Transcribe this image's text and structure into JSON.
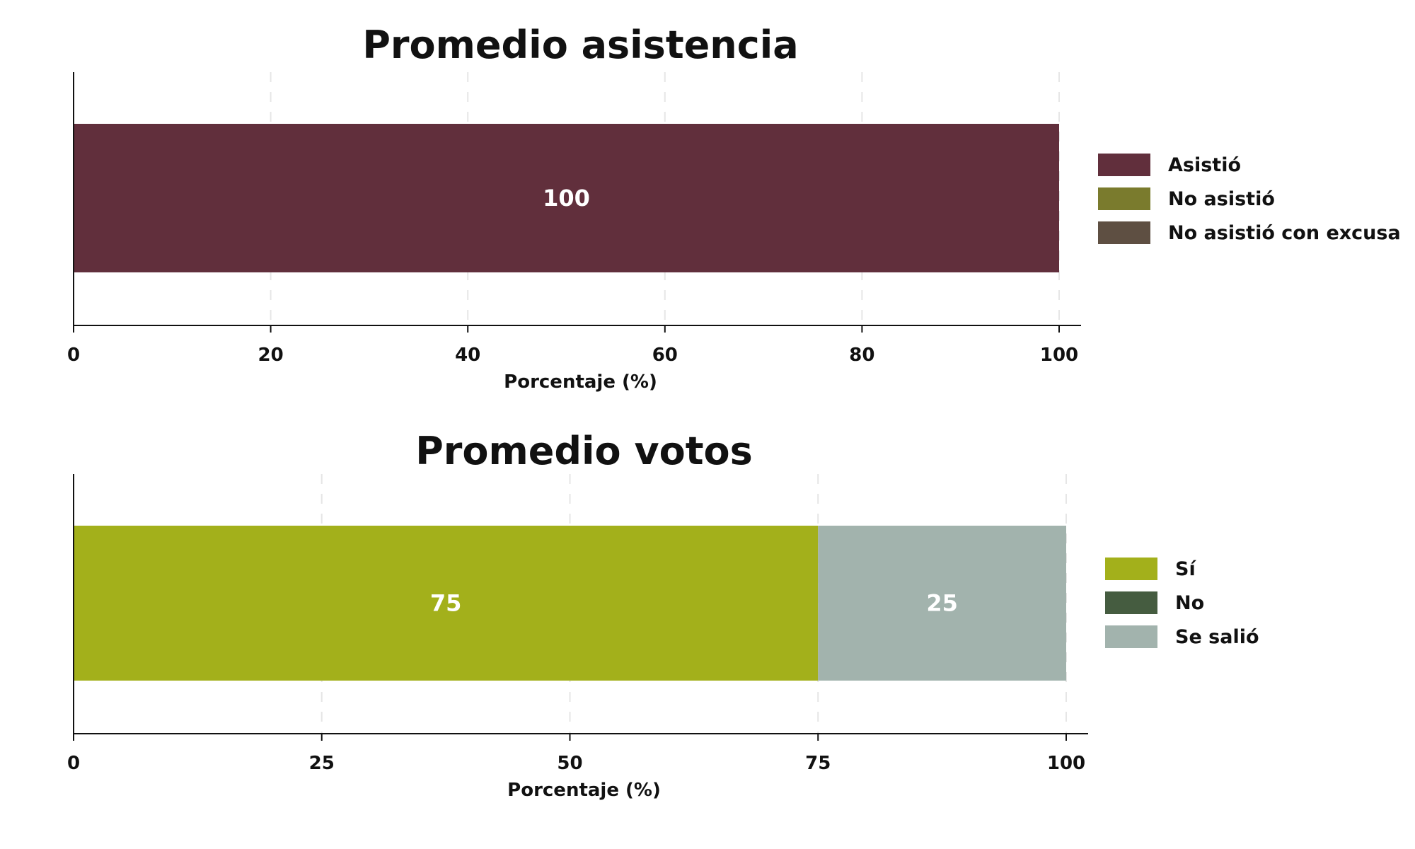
{
  "chart_data": [
    {
      "type": "bar",
      "orientation": "horizontal",
      "stacked": true,
      "title": "Promedio asistencia",
      "xlabel": "Porcentaje (%)",
      "ylabel": "",
      "xlim": [
        0,
        100
      ],
      "xticks": [
        0,
        20,
        40,
        60,
        80,
        100
      ],
      "grid": "vertical dashed",
      "legend_position": "right",
      "series": [
        {
          "name": "Asistió",
          "values": [
            100
          ],
          "color": "#612f3c"
        },
        {
          "name": "No asistió",
          "values": [
            0
          ],
          "color": "#7a7b2d"
        },
        {
          "name": "No asistió con excusa",
          "values": [
            0
          ],
          "color": "#5e4f42"
        }
      ]
    },
    {
      "type": "bar",
      "orientation": "horizontal",
      "stacked": true,
      "title": "Promedio votos",
      "xlabel": "Porcentaje (%)",
      "ylabel": "",
      "xlim": [
        0,
        100
      ],
      "xticks": [
        0,
        25,
        50,
        75,
        100
      ],
      "grid": "vertical dashed",
      "legend_position": "right",
      "series": [
        {
          "name": "Sí",
          "values": [
            75
          ],
          "color": "#a3b01b"
        },
        {
          "name": "No",
          "values": [
            0
          ],
          "color": "#455c40"
        },
        {
          "name": "Se salió",
          "values": [
            25
          ],
          "color": "#a2b3ad"
        }
      ]
    }
  ]
}
